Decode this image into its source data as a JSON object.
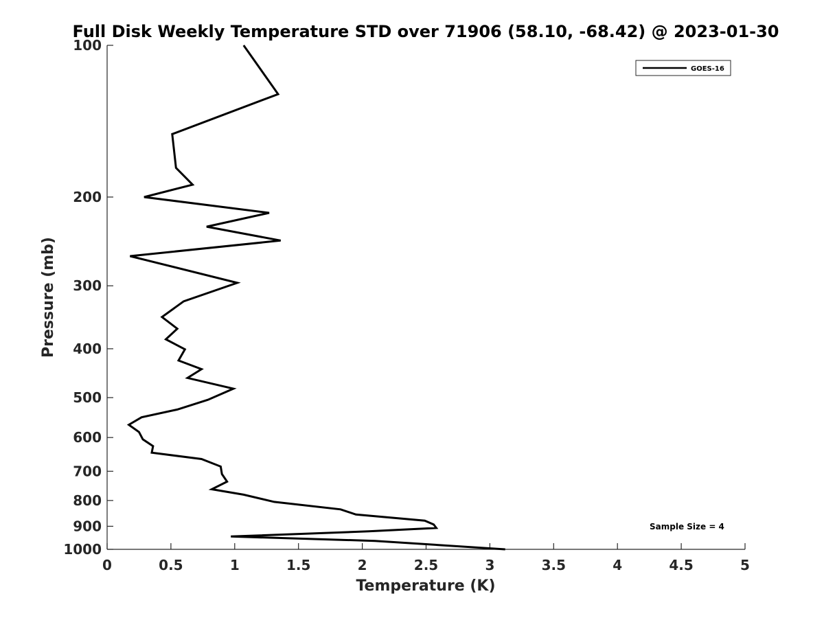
{
  "chart_data": {
    "type": "line",
    "title": "Full Disk Weekly Temperature STD over 71906 (58.10, -68.42) @ 2023-01-30",
    "xlabel": "Temperature (K)",
    "ylabel": "Pressure (mb)",
    "xlim": [
      0,
      5
    ],
    "ylim": [
      100,
      1000
    ],
    "y_scale": "log",
    "y_reversed": true,
    "x_ticks": [
      "0",
      "0.5",
      "1",
      "1.5",
      "2",
      "2.5",
      "3",
      "3.5",
      "4",
      "4.5",
      "5"
    ],
    "y_ticks": [
      "100",
      "200",
      "300",
      "400",
      "500",
      "600",
      "700",
      "800",
      "900",
      "1000"
    ],
    "grid": false,
    "legend_position": "top-right",
    "annotation": "Sample Size = 4",
    "series": [
      {
        "name": "GOES-16",
        "color": "#000000",
        "points": [
          [
            1.07,
            100
          ],
          [
            1.34,
            125
          ],
          [
            0.51,
            150
          ],
          [
            0.54,
            175
          ],
          [
            0.67,
            189
          ],
          [
            0.29,
            200
          ],
          [
            1.27,
            215
          ],
          [
            0.78,
            229
          ],
          [
            1.36,
            244
          ],
          [
            0.18,
            262
          ],
          [
            1.02,
            296
          ],
          [
            0.6,
            322
          ],
          [
            0.43,
            346
          ],
          [
            0.55,
            365
          ],
          [
            0.46,
            383
          ],
          [
            0.61,
            401
          ],
          [
            0.56,
            422
          ],
          [
            0.74,
            439
          ],
          [
            0.63,
            457
          ],
          [
            0.99,
            480
          ],
          [
            0.79,
            505
          ],
          [
            0.55,
            528
          ],
          [
            0.27,
            547
          ],
          [
            0.17,
            566
          ],
          [
            0.25,
            585
          ],
          [
            0.28,
            605
          ],
          [
            0.36,
            624
          ],
          [
            0.35,
            643
          ],
          [
            0.74,
            662
          ],
          [
            0.89,
            685
          ],
          [
            0.9,
            709
          ],
          [
            0.94,
            734
          ],
          [
            0.82,
            760
          ],
          [
            1.07,
            779
          ],
          [
            1.31,
            805
          ],
          [
            1.83,
            833
          ],
          [
            1.95,
            853
          ],
          [
            2.49,
            877
          ],
          [
            2.56,
            893
          ],
          [
            2.58,
            907
          ],
          [
            2.05,
            921
          ],
          [
            0.97,
            943
          ],
          [
            2.1,
            962
          ],
          [
            3.12,
            1000
          ]
        ]
      }
    ]
  }
}
